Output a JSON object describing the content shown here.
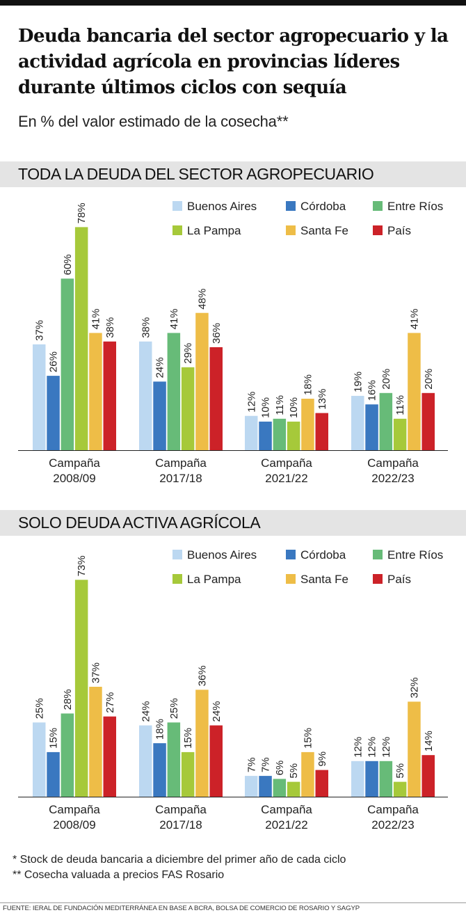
{
  "title": "Deuda bancaria del sector agropecuario y la actividad agrícola en provincias líderes durante últimos ciclos con sequía",
  "subtitle": "En % del valor estimado de la cosecha**",
  "colors": {
    "Buenos Aires": "#bcd8f1",
    "Córdoba": "#3a78c0",
    "Entre Ríos": "#67bb78",
    "La Pampa": "#a6c93a",
    "Santa Fe": "#eebd47",
    "País": "#cc2228"
  },
  "chart_data": [
    {
      "type": "bar",
      "title": "TODA LA DEUDA DEL SECTOR AGROPECUARIO",
      "categories": [
        "Campaña 2008/09",
        "Campaña 2017/18",
        "Campaña 2021/22",
        "Campaña 2022/23"
      ],
      "category_lines": [
        [
          "Campaña",
          "2008/09"
        ],
        [
          "Campaña",
          "2017/18"
        ],
        [
          "Campaña",
          "2021/22"
        ],
        [
          "Campaña",
          "2022/23"
        ]
      ],
      "series": [
        {
          "name": "Buenos Aires",
          "values": [
            37,
            38,
            12,
            19
          ]
        },
        {
          "name": "Córdoba",
          "values": [
            26,
            24,
            10,
            16
          ]
        },
        {
          "name": "Entre Ríos",
          "values": [
            60,
            41,
            11,
            20
          ]
        },
        {
          "name": "La Pampa",
          "values": [
            78,
            29,
            10,
            11
          ]
        },
        {
          "name": "Santa Fe",
          "values": [
            41,
            48,
            18,
            41
          ]
        },
        {
          "name": "País",
          "values": [
            38,
            36,
            13,
            20
          ]
        }
      ],
      "value_suffix": "%",
      "ylim": [
        0,
        80
      ],
      "grid": false,
      "legend": "top-right"
    },
    {
      "type": "bar",
      "title": "SOLO DEUDA ACTIVA AGRÍCOLA",
      "categories": [
        "Campaña 2008/09",
        "Campaña 2017/18",
        "Campaña 2021/22",
        "Campaña 2022/23"
      ],
      "category_lines": [
        [
          "Campaña",
          "2008/09"
        ],
        [
          "Campaña",
          "2017/18"
        ],
        [
          "Campaña",
          "2021/22"
        ],
        [
          "Campaña",
          "2022/23"
        ]
      ],
      "series": [
        {
          "name": "Buenos Aires",
          "values": [
            25,
            24,
            7,
            12
          ]
        },
        {
          "name": "Córdoba",
          "values": [
            15,
            18,
            7,
            12
          ]
        },
        {
          "name": "Entre Ríos",
          "values": [
            28,
            25,
            6,
            12
          ]
        },
        {
          "name": "La Pampa",
          "values": [
            73,
            15,
            5,
            5
          ]
        },
        {
          "name": "Santa Fe",
          "values": [
            37,
            36,
            15,
            32
          ]
        },
        {
          "name": "País",
          "values": [
            27,
            24,
            9,
            14
          ]
        }
      ],
      "value_suffix": "%",
      "ylim": [
        0,
        75
      ],
      "grid": false,
      "legend": "top-right"
    }
  ],
  "notes": [
    "* Stock de deuda bancaria a diciembre del primer año de cada ciclo",
    "** Cosecha valuada a precios FAS Rosario"
  ],
  "source": "FUENTE: IERAL DE FUNDACIÓN MEDITERRÁNEA EN BASE A BCRA, BOLSA DE COMERCIO DE ROSARIO Y SAGYP"
}
